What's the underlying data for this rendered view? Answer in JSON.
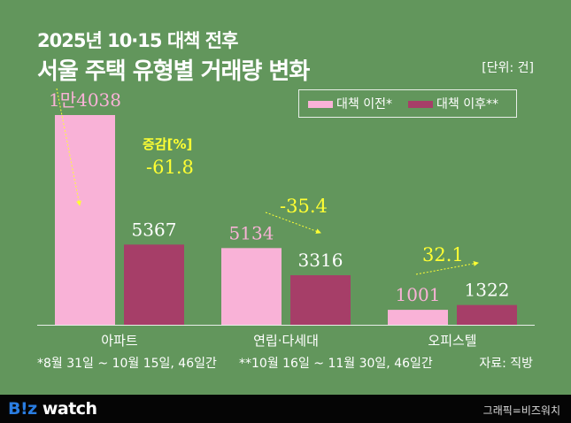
{
  "header": {
    "title_line1": "2025년 10·15 대책 전후",
    "title_line2": "서울 주택 유형별 거래량 변화",
    "unit": "[단위: 건]"
  },
  "footer": {
    "note_before": "*8월 31일 ~ 10월 15일, 46일간",
    "note_after": "**10월 16일 ~ 11월 30일, 46일간",
    "source": "자료: 직방",
    "logo": "B!z watch",
    "credit": "그래픽=비즈워치"
  },
  "colors": {
    "background": "#62965c",
    "before": "#f9b2d7",
    "after": "#a63e68",
    "change": "#ffff33"
  },
  "chart_data": {
    "type": "bar",
    "categories": [
      "아파트",
      "연립·다세대",
      "오피스텔"
    ],
    "series": [
      {
        "name": "대책 이전*",
        "values": [
          14038,
          5134,
          1001
        ],
        "labels": [
          "1만4038",
          "5134",
          "1001"
        ]
      },
      {
        "name": "대책 이후**",
        "values": [
          5367,
          3316,
          1322
        ],
        "labels": [
          "5367",
          "3316",
          "1322"
        ]
      }
    ],
    "change_title": "증감[%]",
    "change": [
      -61.8,
      -35.4,
      32.1
    ],
    "change_labels": [
      "-61.8",
      "-35.4",
      "32.1"
    ],
    "legend": "top-right",
    "grid": false
  }
}
